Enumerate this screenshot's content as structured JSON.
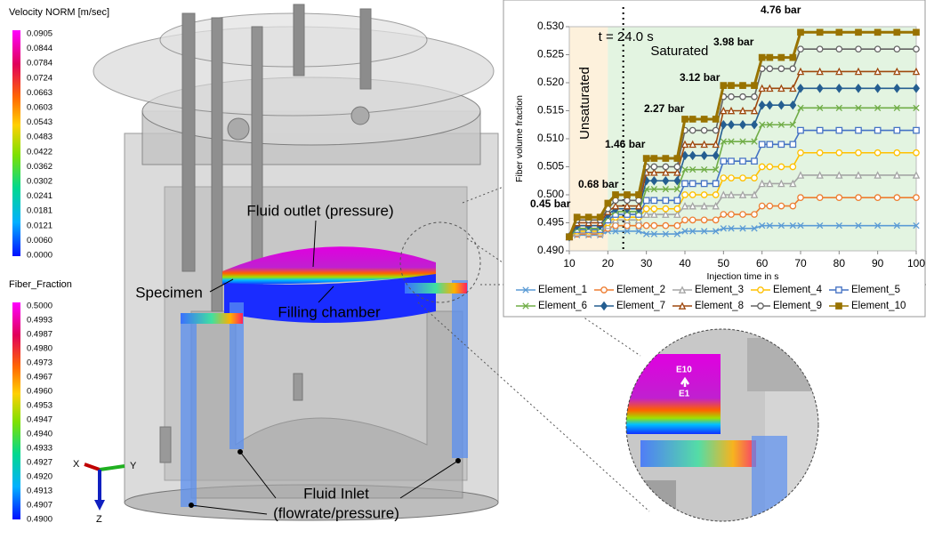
{
  "velocity_legend": {
    "title": "Velocity NORM [m/sec]",
    "labels": [
      "0.0905",
      "0.0844",
      "0.0784",
      "0.0724",
      "0.0663",
      "0.0603",
      "0.0543",
      "0.0483",
      "0.0422",
      "0.0362",
      "0.0302",
      "0.0241",
      "0.0181",
      "0.0121",
      "0.0060",
      "0.0000"
    ]
  },
  "fiber_legend": {
    "title": "Fiber_Fraction",
    "labels": [
      "0.5000",
      "0.4993",
      "0.4987",
      "0.4980",
      "0.4973",
      "0.4967",
      "0.4960",
      "0.4953",
      "0.4947",
      "0.4940",
      "0.4933",
      "0.4927",
      "0.4920",
      "0.4913",
      "0.4907",
      "0.4900"
    ]
  },
  "annotations": {
    "outlet": "Fluid outlet (pressure)",
    "specimen": "Specimen",
    "chamber": "Filling chamber",
    "inlet": "Fluid Inlet",
    "inlet_sub": "(flowrate/pressure)",
    "axis_x": "X",
    "axis_y": "Y",
    "axis_z": "Z",
    "e10": "E10",
    "e1": "E1"
  },
  "chart_data": {
    "type": "line",
    "xlabel": "Injection time in s",
    "ylabel": "Fiber volume fraction",
    "xlim": [
      10,
      100
    ],
    "xticks": [
      10,
      20,
      30,
      40,
      50,
      60,
      70,
      80,
      90,
      100
    ],
    "ylim": [
      0.49,
      0.53
    ],
    "yticks": [
      {
        "value": 0.49,
        "label": "0.490"
      },
      {
        "value": 0.495,
        "label": "0.495"
      },
      {
        "value": 0.5,
        "label": "0.500"
      },
      {
        "value": 0.505,
        "label": "0.505"
      },
      {
        "value": 0.51,
        "label": "0.510"
      },
      {
        "value": 0.515,
        "label": "0.515"
      },
      {
        "value": 0.52,
        "label": "0.520"
      },
      {
        "value": 0.525,
        "label": "0.525"
      },
      {
        "value": 0.53,
        "label": "0.530"
      }
    ],
    "spans": [
      {
        "label": "Unsaturated",
        "x": [
          10,
          20
        ],
        "color": "#fdf1dc"
      },
      {
        "label": "Saturated",
        "x": [
          20,
          100
        ],
        "color": "#e3f4e1"
      }
    ],
    "marker_line": {
      "label": "t = 24.0 s",
      "x": 24
    },
    "pressure_labels": [
      "0.45 bar",
      "0.68 bar",
      "1.46 bar",
      "2.27 bar",
      "3.12 bar",
      "3.98 bar",
      "4.76 bar"
    ],
    "x": [
      10,
      12,
      15,
      18,
      20,
      22,
      25,
      28,
      30,
      32,
      35,
      38,
      40,
      42,
      45,
      48,
      50,
      52,
      55,
      58,
      60,
      62,
      65,
      68,
      70,
      75,
      80,
      85,
      90,
      95,
      100
    ],
    "series": [
      {
        "name": "Element_1",
        "color": "#5b9bd5",
        "marker": "x",
        "values": [
          0.4925,
          0.4928,
          0.4928,
          0.4928,
          0.4935,
          0.4935,
          0.4935,
          0.4935,
          0.493,
          0.493,
          0.493,
          0.493,
          0.4935,
          0.4935,
          0.4935,
          0.4935,
          0.494,
          0.494,
          0.494,
          0.494,
          0.4945,
          0.4945,
          0.4945,
          0.4945,
          0.4945,
          0.4945,
          0.4945,
          0.4945,
          0.4945,
          0.4945,
          0.4945
        ]
      },
      {
        "name": "Element_2",
        "color": "#ed7d31",
        "marker": "circle",
        "values": [
          0.4925,
          0.493,
          0.493,
          0.493,
          0.494,
          0.4945,
          0.4945,
          0.4945,
          0.4945,
          0.4945,
          0.4945,
          0.4945,
          0.4955,
          0.4955,
          0.4955,
          0.4955,
          0.4965,
          0.4965,
          0.4965,
          0.4965,
          0.498,
          0.498,
          0.498,
          0.498,
          0.4995,
          0.4995,
          0.4995,
          0.4995,
          0.4995,
          0.4995,
          0.4995
        ]
      },
      {
        "name": "Element_3",
        "color": "#a5a5a5",
        "marker": "triangle",
        "values": [
          0.4925,
          0.4932,
          0.4932,
          0.4932,
          0.4945,
          0.4955,
          0.4955,
          0.4955,
          0.4965,
          0.4965,
          0.4965,
          0.4965,
          0.498,
          0.498,
          0.498,
          0.498,
          0.5,
          0.5,
          0.5,
          0.5,
          0.502,
          0.502,
          0.502,
          0.502,
          0.5035,
          0.5035,
          0.5035,
          0.5035,
          0.5035,
          0.5035,
          0.5035
        ]
      },
      {
        "name": "Element_4",
        "color": "#ffc000",
        "marker": "circle",
        "values": [
          0.4925,
          0.4935,
          0.4935,
          0.4935,
          0.495,
          0.496,
          0.496,
          0.496,
          0.4975,
          0.4975,
          0.4975,
          0.4975,
          0.5,
          0.5,
          0.5,
          0.5,
          0.503,
          0.503,
          0.503,
          0.503,
          0.505,
          0.505,
          0.505,
          0.505,
          0.5075,
          0.5075,
          0.5075,
          0.5075,
          0.5075,
          0.5075,
          0.5075
        ]
      },
      {
        "name": "Element_5",
        "color": "#4472c4",
        "marker": "square",
        "values": [
          0.4925,
          0.4938,
          0.4938,
          0.4938,
          0.4955,
          0.4965,
          0.4965,
          0.4965,
          0.499,
          0.499,
          0.499,
          0.499,
          0.502,
          0.502,
          0.502,
          0.502,
          0.506,
          0.506,
          0.506,
          0.506,
          0.509,
          0.509,
          0.509,
          0.509,
          0.5115,
          0.5115,
          0.5115,
          0.5115,
          0.5115,
          0.5115,
          0.5115
        ]
      },
      {
        "name": "Element_6",
        "color": "#70ad47",
        "marker": "x",
        "values": [
          0.4925,
          0.494,
          0.494,
          0.494,
          0.496,
          0.497,
          0.497,
          0.497,
          0.501,
          0.501,
          0.501,
          0.501,
          0.5045,
          0.5045,
          0.5045,
          0.5045,
          0.5095,
          0.5095,
          0.5095,
          0.5095,
          0.5125,
          0.5125,
          0.5125,
          0.5125,
          0.5155,
          0.5155,
          0.5155,
          0.5155,
          0.5155,
          0.5155,
          0.5155
        ]
      },
      {
        "name": "Element_7",
        "color": "#255e91",
        "marker": "diamond",
        "values": [
          0.4925,
          0.4945,
          0.4945,
          0.4945,
          0.4965,
          0.4975,
          0.4975,
          0.4975,
          0.5025,
          0.5025,
          0.5025,
          0.5025,
          0.507,
          0.507,
          0.507,
          0.507,
          0.5125,
          0.5125,
          0.5125,
          0.5125,
          0.516,
          0.516,
          0.516,
          0.516,
          0.519,
          0.519,
          0.519,
          0.519,
          0.519,
          0.519,
          0.519
        ]
      },
      {
        "name": "Element_8",
        "color": "#9e480e",
        "marker": "triangle",
        "values": [
          0.4925,
          0.495,
          0.495,
          0.495,
          0.497,
          0.498,
          0.498,
          0.498,
          0.504,
          0.504,
          0.504,
          0.504,
          0.509,
          0.509,
          0.509,
          0.509,
          0.515,
          0.515,
          0.515,
          0.515,
          0.519,
          0.519,
          0.519,
          0.519,
          0.522,
          0.522,
          0.522,
          0.522,
          0.522,
          0.522,
          0.522
        ]
      },
      {
        "name": "Element_9",
        "color": "#636363",
        "marker": "circle",
        "values": [
          0.4925,
          0.4955,
          0.4955,
          0.4955,
          0.4975,
          0.499,
          0.499,
          0.499,
          0.505,
          0.505,
          0.505,
          0.505,
          0.5115,
          0.5115,
          0.5115,
          0.5115,
          0.5175,
          0.5175,
          0.5175,
          0.5175,
          0.5225,
          0.5225,
          0.5225,
          0.5225,
          0.526,
          0.526,
          0.526,
          0.526,
          0.526,
          0.526,
          0.526
        ]
      },
      {
        "name": "Element_10",
        "color": "#997300",
        "marker": "square",
        "values": [
          0.4925,
          0.496,
          0.496,
          0.496,
          0.4985,
          0.5,
          0.5,
          0.5,
          0.5065,
          0.5065,
          0.5065,
          0.5065,
          0.5135,
          0.5135,
          0.5135,
          0.5135,
          0.5195,
          0.5195,
          0.5195,
          0.5195,
          0.5245,
          0.5245,
          0.5245,
          0.5245,
          0.529,
          0.529,
          0.529,
          0.529,
          0.529,
          0.529,
          0.529
        ]
      }
    ]
  }
}
